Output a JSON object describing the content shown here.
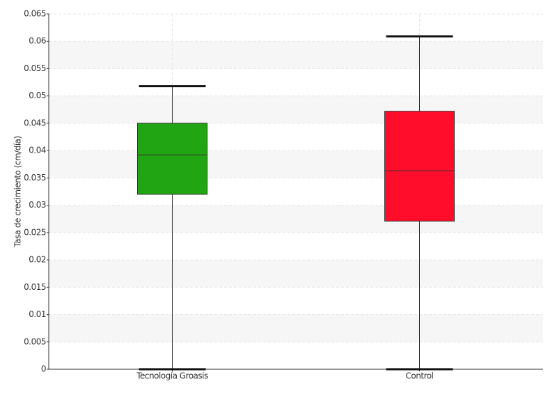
{
  "chart_data": {
    "type": "box",
    "y_label": "Tasa de crecimiento (cm/día)",
    "categories": [
      "Tecnología Groasis",
      "Control"
    ],
    "boxes": [
      {
        "min": 0,
        "q1": 0.032,
        "median": 0.0392,
        "q3": 0.045,
        "max": 0.0518,
        "color": "#22a512"
      },
      {
        "min": 0,
        "q1": 0.0271,
        "median": 0.0363,
        "q3": 0.0472,
        "max": 0.0609,
        "color": "#ff0d2a"
      }
    ],
    "ylim": [
      0,
      0.065
    ],
    "yticks": [
      0,
      0.005,
      0.01,
      0.015,
      0.02,
      0.025,
      0.03,
      0.035,
      0.04,
      0.045,
      0.05,
      0.055,
      0.06,
      0.065
    ],
    "grid": true
  }
}
